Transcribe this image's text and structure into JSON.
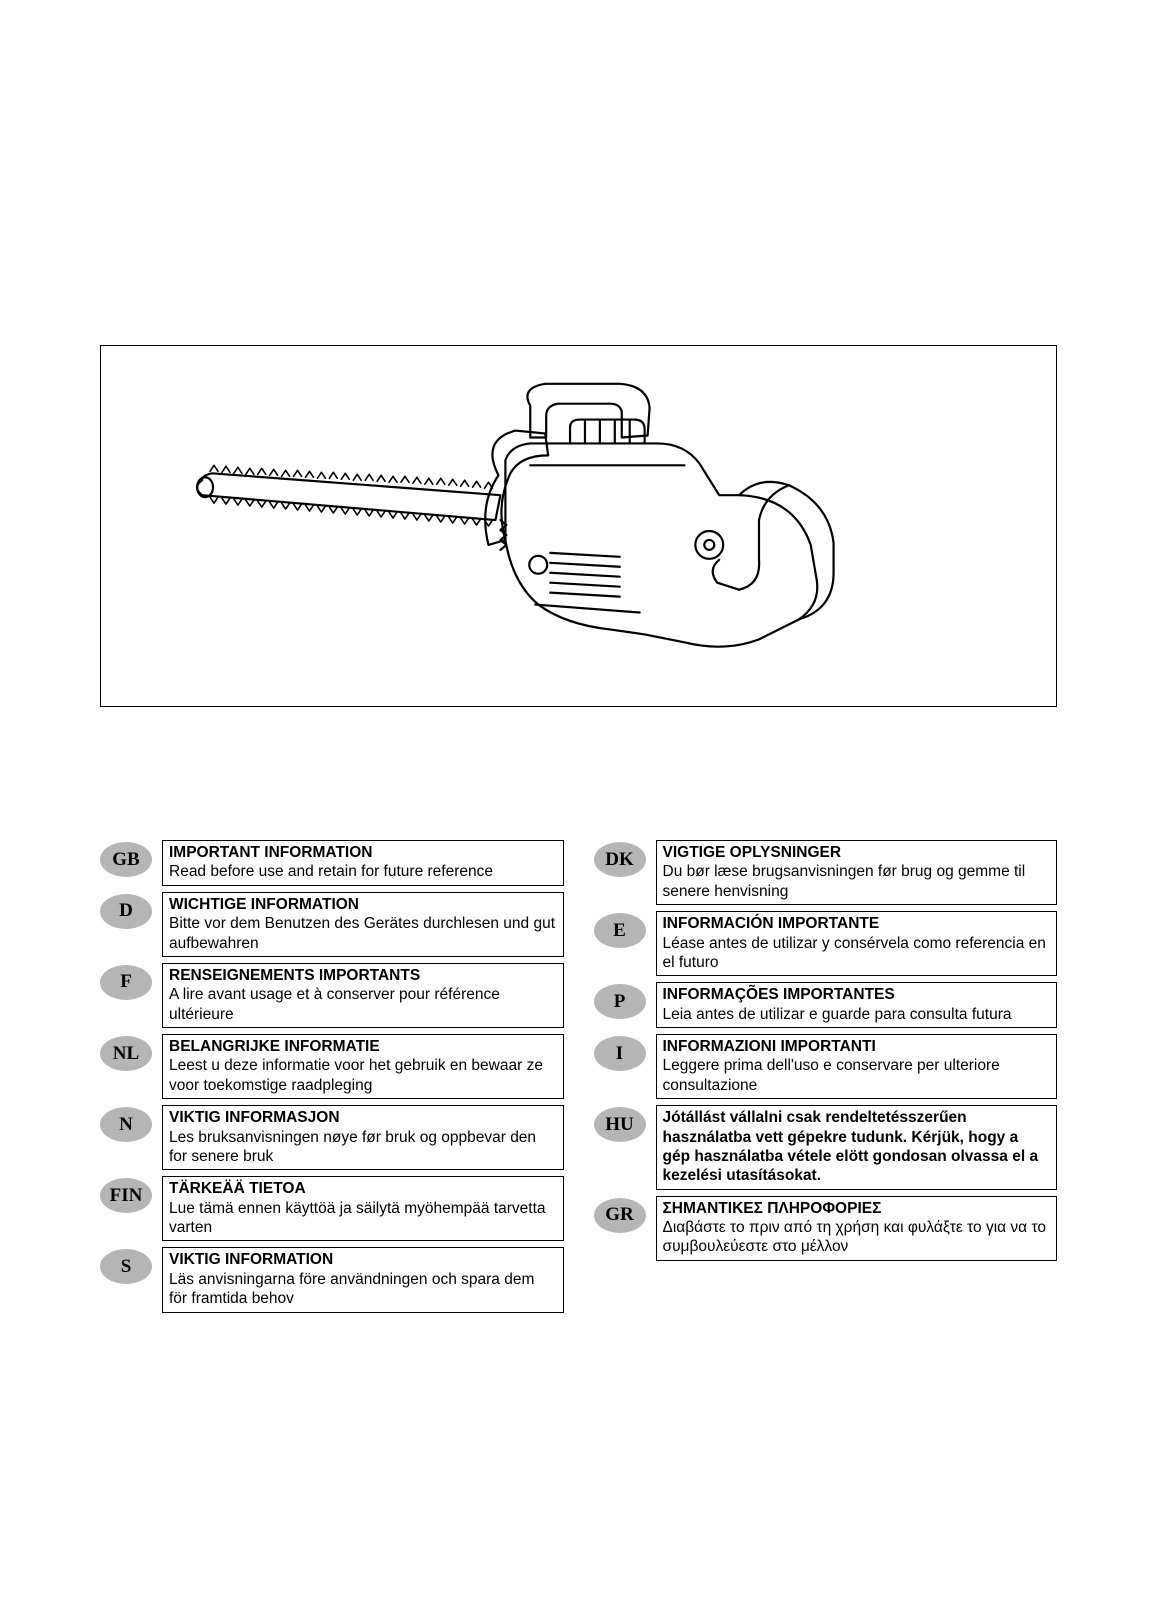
{
  "illustration": {
    "stroke_color": "#000000",
    "stroke_width": 2,
    "background_color": "#ffffff",
    "frame_border_color": "#000000"
  },
  "badge_style": {
    "background_color": "#b5b5b5",
    "text_color": "#000000",
    "font_family": "Times New Roman",
    "font_size_pt": 14,
    "font_weight": "bold"
  },
  "text_style": {
    "title_font_weight": "bold",
    "body_font_weight": "normal",
    "font_size_pt": 11.5,
    "border_color": "#000000",
    "text_color": "#000000"
  },
  "left_column": [
    {
      "code": "GB",
      "title": "IMPORTANT INFORMATION",
      "body": "Read before use and retain for future reference"
    },
    {
      "code": "D",
      "title": "WICHTIGE INFORMATION",
      "body": "Bitte vor dem Benutzen des Gerätes durchlesen und gut aufbewahren"
    },
    {
      "code": "F",
      "title": "RENSEIGNEMENTS IMPORTANTS",
      "body": "A lire avant usage et à conserver pour référence ultérieure"
    },
    {
      "code": "NL",
      "title": "BELANGRIJKE INFORMATIE",
      "body": "Leest u deze informatie voor het gebruik en bewaar ze voor toekomstige raadpleging"
    },
    {
      "code": "N",
      "title": "VIKTIG INFORMASJON",
      "body": "Les bruksanvisningen nøye før bruk og oppbevar den for senere bruk"
    },
    {
      "code": "FIN",
      "title": "TÄRKEÄÄ TIETOA",
      "body": "Lue tämä ennen käyttöä ja säilytä myöhempää tarvetta varten"
    },
    {
      "code": "S",
      "title": "VIKTIG INFORMATION",
      "body": "Läs anvisningarna före användningen och spara dem för framtida behov"
    }
  ],
  "right_column": [
    {
      "code": "DK",
      "title": "VIGTIGE OPLYSNINGER",
      "body": "Du bør læse brugsanvisningen før brug og gemme til senere henvisning"
    },
    {
      "code": "E",
      "title": "INFORMACIÓN  IMPORTANTE",
      "body": "Léase antes de utilizar y consérvela como referencia en el futuro"
    },
    {
      "code": "P",
      "title": "INFORMAÇÕES  IMPORTANTES",
      "body": "Leia antes de utilizar e guarde para consulta futura"
    },
    {
      "code": "I",
      "title": "INFORMAZIONI  IMPORTANTI",
      "body": "Leggere prima dell'uso e conservare per ulteriore consultazione"
    },
    {
      "code": "HU",
      "title": "",
      "body": "Jótállást vállalni csak rendeltetésszerűen használatba vett gépekre tudunk.  Kérjük, hogy a gép használatba vétele elött gondosan olvassa el a kezelési utasításokat.",
      "all_bold": true
    },
    {
      "code": "GR",
      "title": "ΣΗΜΑΝΤΙΚΕΣ ΠΛΗΡΟΦΟΡΙΕΣ",
      "body": "Διαβάστε το πριν από  τη  χρήση και φυλάξτε το για να το συμβουλεύεστε στο μέλλον"
    }
  ]
}
